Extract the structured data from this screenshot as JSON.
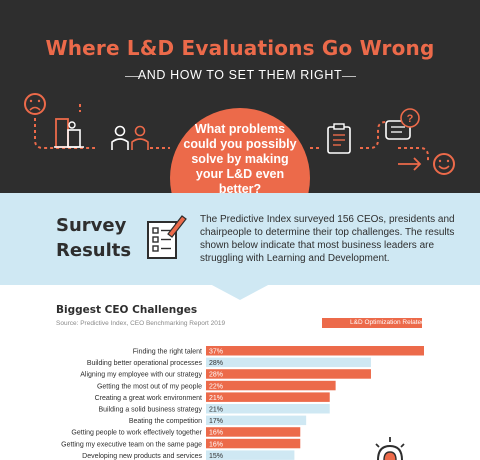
{
  "hero": {
    "title": "Where L&D Evaluations Go Wrong",
    "subtitle": "AND HOW TO SET THEM RIGHT",
    "question": "What problems could you possibly solve by making your L&D even better?",
    "colors": {
      "background": "#2e2e2e",
      "accent": "#ec6a4a"
    },
    "icons": [
      "sad-face-icon",
      "chart-podium-icon",
      "people-icon",
      "clipboard-icon",
      "speech-bubble-question-icon",
      "happy-face-icon"
    ]
  },
  "survey": {
    "title_line1": "Survey",
    "title_line2": "Results",
    "text": "The Predictive Index surveyed 156 CEOs, presidents and chairpeople to determine their top challenges. The results shown below indicate that most business leaders are struggling with Learning and Development.",
    "icon": "checklist-pencil-icon",
    "background": "#cfe8f3"
  },
  "chart_data": {
    "type": "bar",
    "orientation": "horizontal",
    "title": "Biggest CEO Challenges",
    "source": "Source: Predictive Index, CEO Benchmarking Report 2019",
    "legend": {
      "label": "L&D Optimization Related",
      "color": "#ec6a4a",
      "placement": "top-right"
    },
    "categories": [
      "Finding the right talent",
      "Building better operational processes",
      "Aligning my employee with our strategy",
      "Getting the most out of my people",
      "Creating a great work environment",
      "Building a solid business strategy",
      "Beating the competition",
      "Getting people to  work effectively together",
      "Getting my executive team on the same page",
      "Developing new products and services"
    ],
    "values": [
      37,
      28,
      28,
      22,
      21,
      21,
      17,
      16,
      16,
      15
    ],
    "labels": [
      "37%",
      "28%",
      "28%",
      "22%",
      "21%",
      "21%",
      "17%",
      "16%",
      "16%",
      "15%"
    ],
    "ld_related": [
      true,
      false,
      true,
      true,
      true,
      false,
      false,
      true,
      true,
      false
    ],
    "colors": {
      "ld": "#ec6a4a",
      "other": "#cfe8f3"
    },
    "xlim": [
      0,
      37
    ]
  }
}
